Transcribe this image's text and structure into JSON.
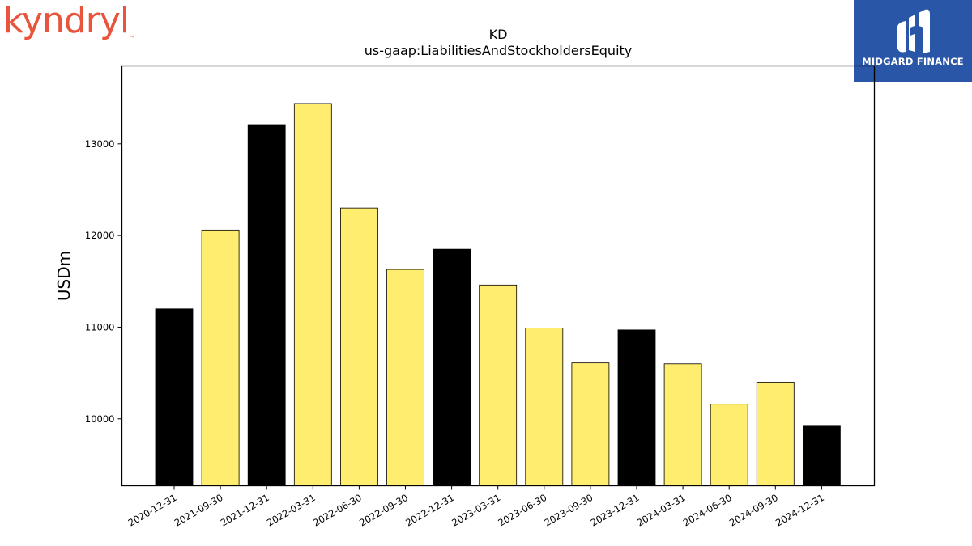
{
  "logos": {
    "left": {
      "text": "kyndryl",
      "tm": "™",
      "color": "#e8543c"
    },
    "right": {
      "text": "MIDGARD FINANCE",
      "background": "#2a56a8"
    }
  },
  "chart_data": {
    "type": "bar",
    "title": "KD",
    "subtitle": "us-gaap:LiabilitiesAndStockholdersEquity",
    "ylabel": "USDm",
    "xlabel": "",
    "ylim": [
      9270,
      13850
    ],
    "yticks": [
      10000,
      11000,
      12000,
      13000
    ],
    "grid": false,
    "categories": [
      "2020-12-31",
      "2021-09-30",
      "2021-12-31",
      "2022-03-31",
      "2022-06-30",
      "2022-09-30",
      "2022-12-31",
      "2023-03-31",
      "2023-06-30",
      "2023-09-30",
      "2023-12-31",
      "2024-03-31",
      "2024-06-30",
      "2024-09-30",
      "2024-12-31"
    ],
    "values": [
      11200,
      12060,
      13210,
      13440,
      12300,
      11630,
      11850,
      11460,
      10990,
      10610,
      10970,
      10600,
      10160,
      10400,
      9920
    ],
    "bar_colors": [
      "#000000",
      "#ffed6f",
      "#000000",
      "#ffed6f",
      "#ffed6f",
      "#ffed6f",
      "#000000",
      "#ffed6f",
      "#ffed6f",
      "#ffed6f",
      "#000000",
      "#ffed6f",
      "#ffed6f",
      "#ffed6f",
      "#000000"
    ]
  }
}
